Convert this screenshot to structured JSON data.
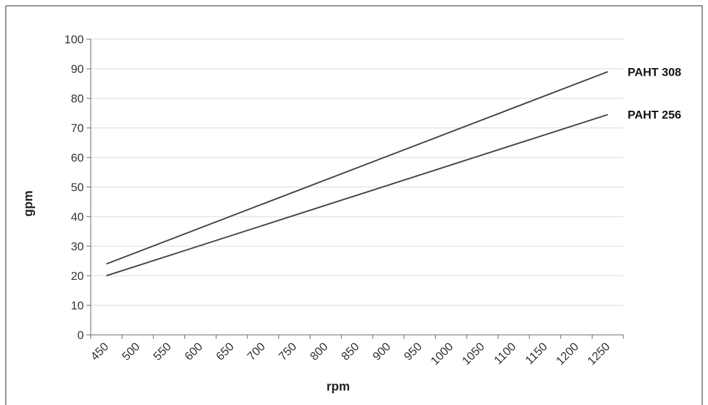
{
  "chart_data": {
    "type": "line",
    "xlabel": "rpm",
    "ylabel": "gpm",
    "x_tick_labels": [
      "450",
      "500",
      "550",
      "600",
      "650",
      "700",
      "750",
      "800",
      "850",
      "900",
      "950",
      "1000",
      "1050",
      "1100",
      "1150",
      "1200",
      "1250"
    ],
    "y_tick_labels": [
      "0",
      "10",
      "20",
      "30",
      "40",
      "50",
      "60",
      "70",
      "80",
      "90",
      "100"
    ],
    "xlim": [
      425,
      1275
    ],
    "ylim": [
      0,
      100
    ],
    "grid": "horizontal",
    "legend": "none",
    "series": [
      {
        "name": "PAHT 308",
        "x": [
          450,
          1250
        ],
        "y": [
          24,
          89
        ],
        "color": "#444444"
      },
      {
        "name": "PAHT 256",
        "x": [
          450,
          1250
        ],
        "y": [
          20,
          74.5
        ],
        "color": "#444444"
      }
    ]
  }
}
